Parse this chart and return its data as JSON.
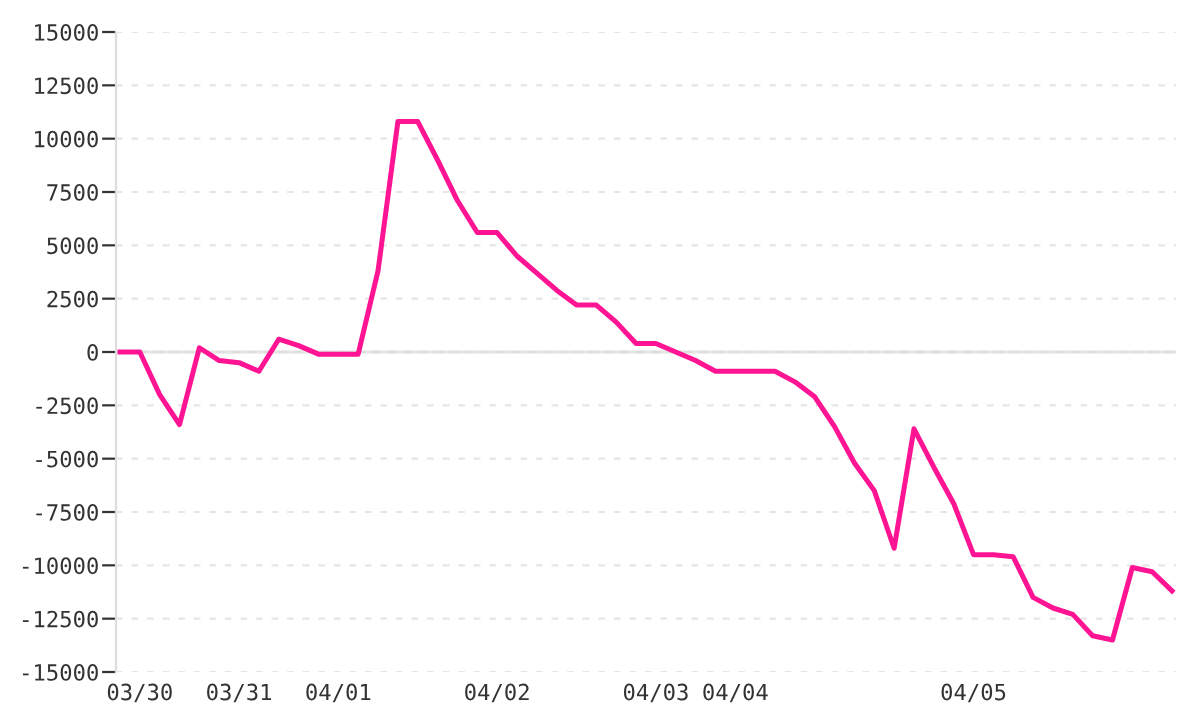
{
  "chart_data": {
    "type": "line",
    "categories": [
      null,
      "03/30",
      null,
      null,
      null,
      null,
      "03/31",
      null,
      null,
      null,
      null,
      "04/01",
      null,
      null,
      null,
      null,
      null,
      null,
      null,
      "04/02",
      null,
      null,
      null,
      null,
      null,
      null,
      null,
      "04/03",
      null,
      null,
      null,
      "04/04",
      null,
      null,
      null,
      null,
      null,
      null,
      null,
      null,
      null,
      null,
      null,
      "04/05",
      null,
      null,
      null,
      null,
      null,
      null,
      null,
      null,
      null,
      null
    ],
    "series": [
      {
        "color": "#ff1493",
        "values": [
          0,
          0,
          -2000,
          -3400,
          200,
          -400,
          -500,
          -900,
          600,
          300,
          -100,
          -100,
          -100,
          3800,
          10800,
          10800,
          9000,
          7100,
          5600,
          5600,
          4500,
          3700,
          2900,
          2200,
          2200,
          1400,
          400,
          400,
          0,
          -400,
          -900,
          -900,
          -900,
          -900,
          -1400,
          -2100,
          -3500,
          -5200,
          -6500,
          -9200,
          -3600,
          -5400,
          -7100,
          -9500,
          -9500,
          -9600,
          -11500,
          -12000,
          -12300,
          -13300,
          -13500,
          -10100,
          -10300,
          -11200
        ]
      }
    ],
    "ylim": [
      -15000,
      15000
    ],
    "yticks": [
      -15000,
      -12500,
      -10000,
      -7500,
      -5000,
      -2500,
      0,
      2500,
      5000,
      7500,
      10000,
      12500,
      15000
    ],
    "grid": "y",
    "line_style": "solid",
    "marker": "none"
  }
}
